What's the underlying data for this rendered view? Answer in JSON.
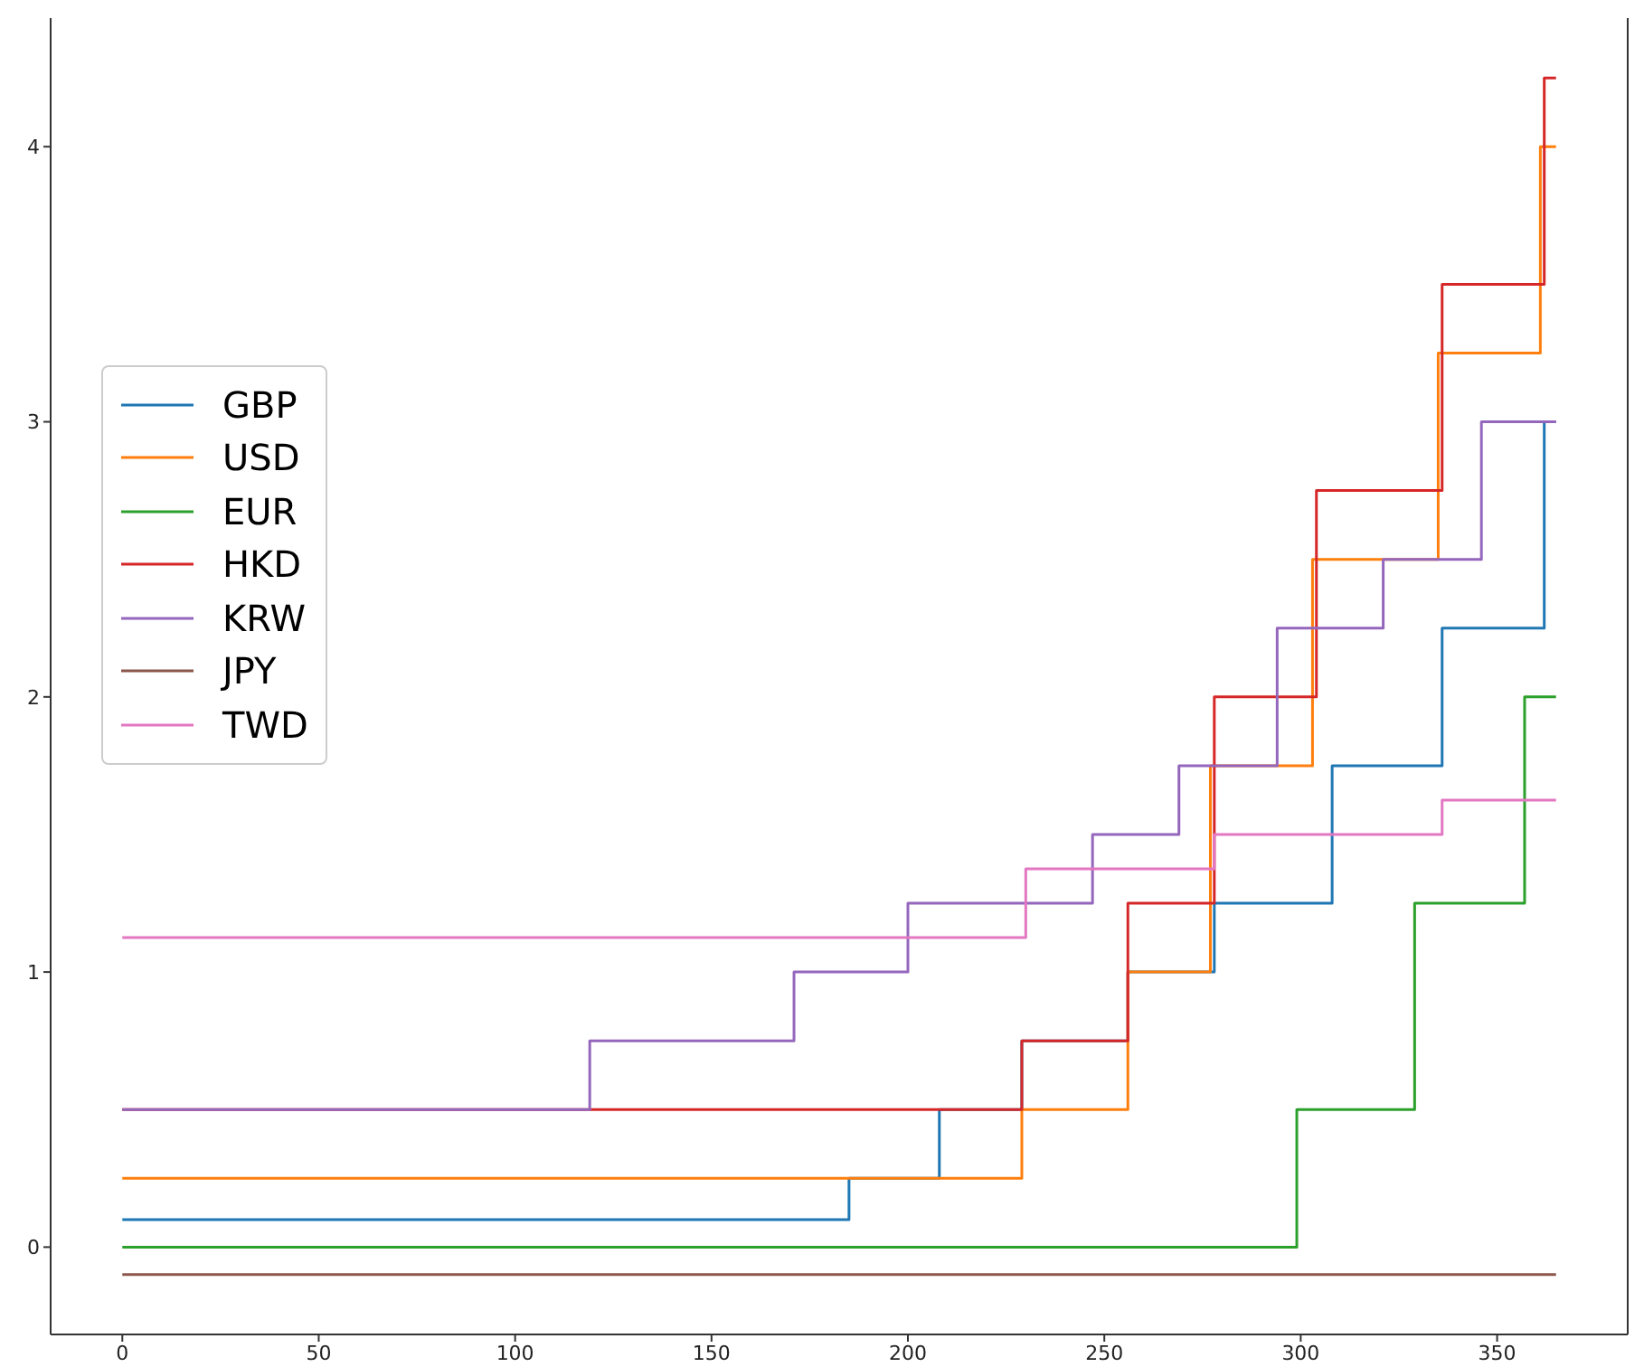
{
  "chart_data": {
    "type": "step",
    "xlim": [
      -18.25,
      383.25
    ],
    "xticks": [
      0,
      50,
      100,
      150,
      200,
      250,
      300,
      350
    ],
    "ylim": [
      -0.3175,
      4.4675
    ],
    "yticks": [
      0,
      1,
      2,
      3,
      4
    ],
    "legend": "left",
    "grid": false,
    "series": [
      {
        "name": "GBP",
        "color": "#1f77b4",
        "x": [
          0,
          185,
          208,
          229,
          256,
          278,
          308,
          336,
          362,
          365
        ],
        "values": [
          0.1,
          0.25,
          0.5,
          0.75,
          1.0,
          1.25,
          1.75,
          2.25,
          3.0,
          3.0
        ]
      },
      {
        "name": "USD",
        "color": "#ff7f0e",
        "x": [
          0,
          229,
          256,
          277,
          303,
          335,
          361,
          365
        ],
        "values": [
          0.25,
          0.5,
          1.0,
          1.75,
          2.5,
          3.25,
          4.0,
          4.0
        ]
      },
      {
        "name": "EUR",
        "color": "#2ca02c",
        "x": [
          0,
          299,
          329,
          357,
          365
        ],
        "values": [
          0,
          0.5,
          1.25,
          2.0,
          2.0
        ]
      },
      {
        "name": "HKD",
        "color": "#d62728",
        "x": [
          0,
          229,
          256,
          278,
          304,
          336,
          362,
          365
        ],
        "values": [
          0.5,
          0.75,
          1.25,
          2.0,
          2.75,
          3.5,
          4.25,
          4.25
        ]
      },
      {
        "name": "KRW",
        "color": "#9467bd",
        "x": [
          0,
          119,
          171,
          200,
          247,
          269,
          294,
          321,
          346,
          365
        ],
        "values": [
          0.5,
          0.75,
          1.0,
          1.25,
          1.5,
          1.75,
          2.25,
          2.5,
          3.0,
          3.0
        ]
      },
      {
        "name": "JPY",
        "color": "#8c564b",
        "x": [
          0,
          365
        ],
        "values": [
          -0.1,
          -0.1
        ]
      },
      {
        "name": "TWD",
        "color": "#e377c2",
        "x": [
          0,
          230,
          278,
          336,
          365
        ],
        "values": [
          1.125,
          1.375,
          1.5,
          1.625,
          1.625
        ]
      }
    ]
  }
}
